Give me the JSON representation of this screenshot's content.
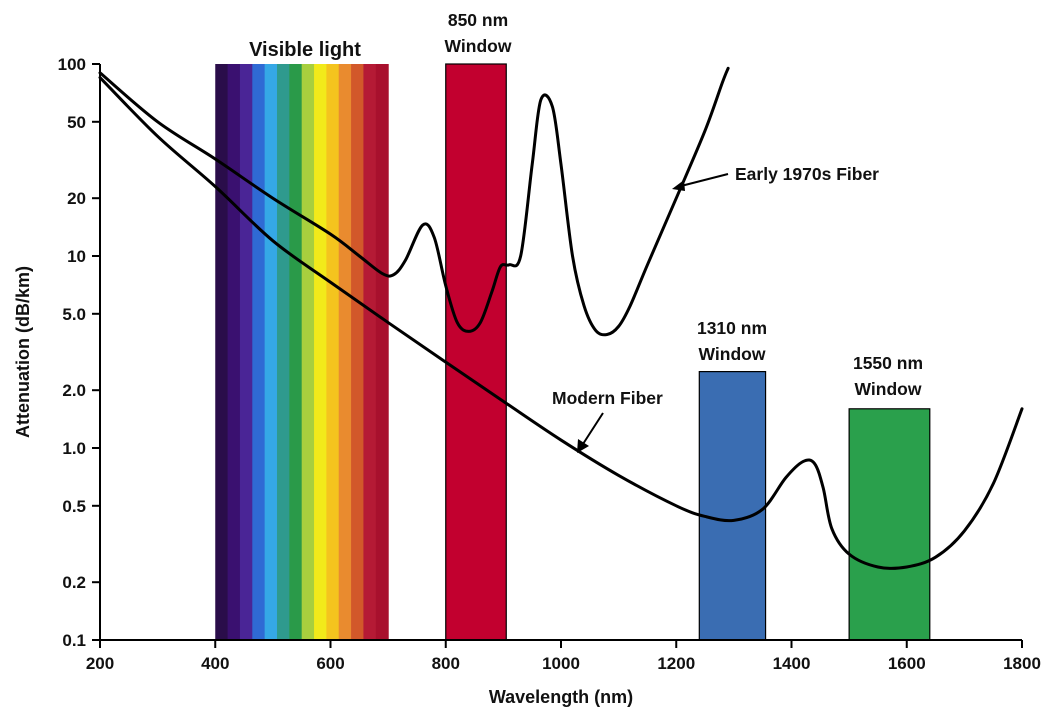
{
  "chart_data": {
    "type": "line",
    "title": "",
    "xlabel": "Wavelength (nm)",
    "ylabel": "Attenuation (dB/km)",
    "xlim": [
      200,
      1800
    ],
    "ylim": [
      0.1,
      100
    ],
    "yscale": "log",
    "grid": false,
    "legend": "none",
    "xticks": [
      200,
      400,
      600,
      800,
      1000,
      1200,
      1400,
      1600,
      1800
    ],
    "yticks": [
      {
        "value": 100,
        "label": "100"
      },
      {
        "value": 50,
        "label": "50"
      },
      {
        "value": 20,
        "label": "20"
      },
      {
        "value": 10,
        "label": "10"
      },
      {
        "value": 5,
        "label": "5.0"
      },
      {
        "value": 2,
        "label": "2.0"
      },
      {
        "value": 1,
        "label": "1.0"
      },
      {
        "value": 0.5,
        "label": "0.5"
      },
      {
        "value": 0.2,
        "label": "0.2"
      },
      {
        "value": 0.1,
        "label": "0.1"
      }
    ],
    "series": [
      {
        "name": "Early 1970s Fiber",
        "color": "#000000",
        "points": [
          [
            200,
            90
          ],
          [
            300,
            50
          ],
          [
            400,
            32
          ],
          [
            500,
            20
          ],
          [
            600,
            13
          ],
          [
            650,
            10
          ],
          [
            690,
            8.1
          ],
          [
            710,
            8
          ],
          [
            730,
            9.5
          ],
          [
            760,
            14.5
          ],
          [
            780,
            12.5
          ],
          [
            800,
            7
          ],
          [
            820,
            4.5
          ],
          [
            840,
            4.05
          ],
          [
            860,
            4.5
          ],
          [
            880,
            6.5
          ],
          [
            895,
            8.8
          ],
          [
            910,
            9
          ],
          [
            930,
            10
          ],
          [
            950,
            30
          ],
          [
            965,
            65
          ],
          [
            985,
            60
          ],
          [
            1000,
            30
          ],
          [
            1020,
            10
          ],
          [
            1040,
            5.5
          ],
          [
            1060,
            4.1
          ],
          [
            1080,
            3.9
          ],
          [
            1100,
            4.3
          ],
          [
            1120,
            5.5
          ],
          [
            1150,
            9
          ],
          [
            1200,
            20
          ],
          [
            1250,
            45
          ],
          [
            1280,
            80
          ],
          [
            1290,
            95
          ]
        ]
      },
      {
        "name": "Modern Fiber",
        "color": "#000000",
        "points": [
          [
            200,
            85
          ],
          [
            300,
            42
          ],
          [
            400,
            23
          ],
          [
            500,
            12
          ],
          [
            600,
            7.3
          ],
          [
            700,
            4.5
          ],
          [
            800,
            2.8
          ],
          [
            900,
            1.75
          ],
          [
            1000,
            1.1
          ],
          [
            1100,
            0.72
          ],
          [
            1200,
            0.5
          ],
          [
            1250,
            0.44
          ],
          [
            1300,
            0.42
          ],
          [
            1350,
            0.48
          ],
          [
            1390,
            0.7
          ],
          [
            1420,
            0.85
          ],
          [
            1440,
            0.83
          ],
          [
            1455,
            0.62
          ],
          [
            1470,
            0.38
          ],
          [
            1500,
            0.28
          ],
          [
            1550,
            0.24
          ],
          [
            1600,
            0.24
          ],
          [
            1650,
            0.27
          ],
          [
            1700,
            0.37
          ],
          [
            1750,
            0.65
          ],
          [
            1800,
            1.6
          ]
        ]
      }
    ],
    "bands": [
      {
        "name": "Visible light",
        "x0": 400,
        "x1": 700,
        "y": 100,
        "colors": [
          "#2a0d4a",
          "#3a1070",
          "#4a2596",
          "#2f6ad4",
          "#35a8e6",
          "#2f9a8e",
          "#2a9a49",
          "#a8cf3e",
          "#f2ea1a",
          "#f4c41e",
          "#e98b2f",
          "#d2582a",
          "#b51a35",
          "#a8102d"
        ]
      },
      {
        "name": "850 nm Window",
        "x0": 800,
        "x1": 905,
        "y": 100,
        "color": "#c2002f"
      },
      {
        "name": "1310 nm Window",
        "x0": 1240,
        "x1": 1355,
        "y": 2.5,
        "color": "#3a6db2"
      },
      {
        "name": "1550 nm Window",
        "x0": 1500,
        "x1": 1640,
        "y": 1.6,
        "color": "#2aa04c"
      }
    ],
    "annotations": {
      "visible": "Visible light",
      "w850_line1": "850 nm",
      "w850_line2": "Window",
      "w1310_line1": "1310 nm",
      "w1310_line2": "Window",
      "w1550_line1": "1550 nm",
      "w1550_line2": "Window",
      "early": "Early 1970s Fiber",
      "modern": "Modern Fiber"
    }
  }
}
